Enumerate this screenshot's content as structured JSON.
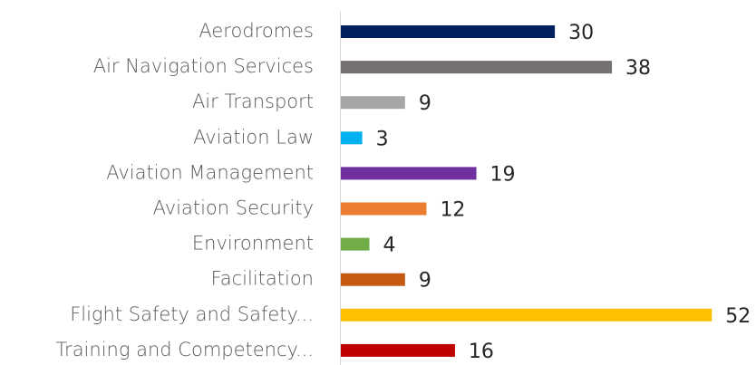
{
  "chart_data": {
    "type": "bar",
    "orientation": "horizontal",
    "categories": [
      "Aerodromes",
      "Air Navigation Services",
      "Air Transport",
      "Aviation Law",
      "Aviation Management",
      "Aviation Security",
      "Environment",
      "Facilitation",
      "Flight Safety and Safety...",
      "Training and Competency..."
    ],
    "values": [
      30,
      38,
      9,
      3,
      19,
      12,
      4,
      9,
      52,
      16
    ],
    "colors": [
      "#002060",
      "#767171",
      "#a6a6a6",
      "#00b0f0",
      "#7030a0",
      "#ed7d31",
      "#70ad47",
      "#c55a11",
      "#ffc000",
      "#c00000"
    ]
  }
}
